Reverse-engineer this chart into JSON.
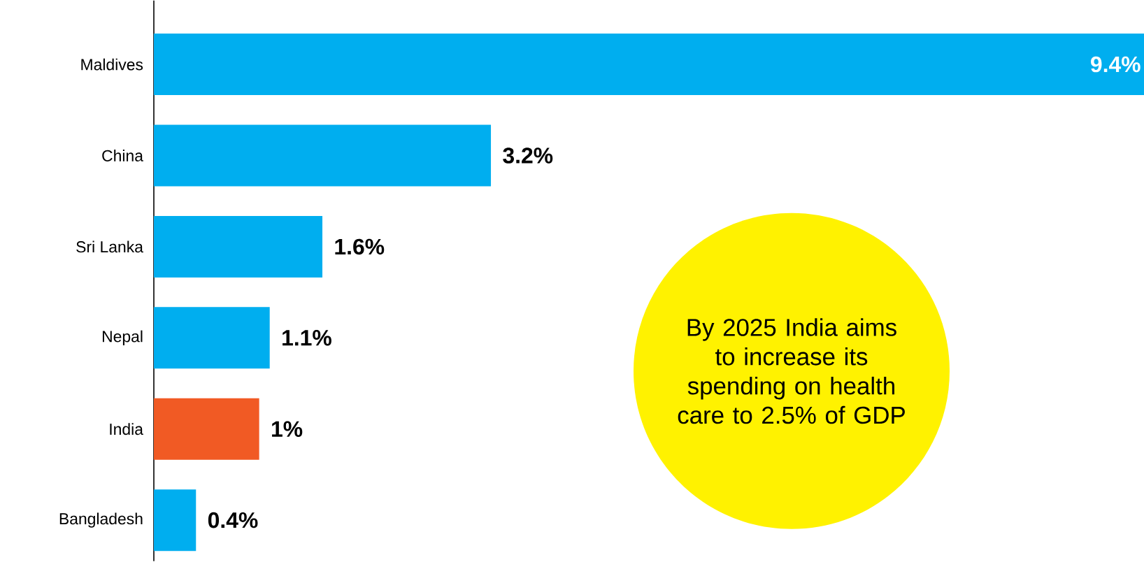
{
  "chart_data": {
    "type": "bar",
    "orientation": "horizontal",
    "categories": [
      "Maldives",
      "China",
      "Sri Lanka",
      "Nepal",
      "India",
      "Bangladesh"
    ],
    "values": [
      9.4,
      3.2,
      1.6,
      1.1,
      1,
      0.4
    ],
    "colors": [
      "#00aeef",
      "#00aeef",
      "#00aeef",
      "#00aeef",
      "#f15a24",
      "#00aeef"
    ],
    "value_labels": [
      "9.4%",
      "3.2%",
      "1.6%",
      "1.1%",
      "1%",
      "0.4%"
    ],
    "xlim": [
      0,
      9.4
    ],
    "tick_labels": "y",
    "annotations": [
      "By 2025 India aims to increase its spending on health care to 2.5% of GDP"
    ]
  }
}
